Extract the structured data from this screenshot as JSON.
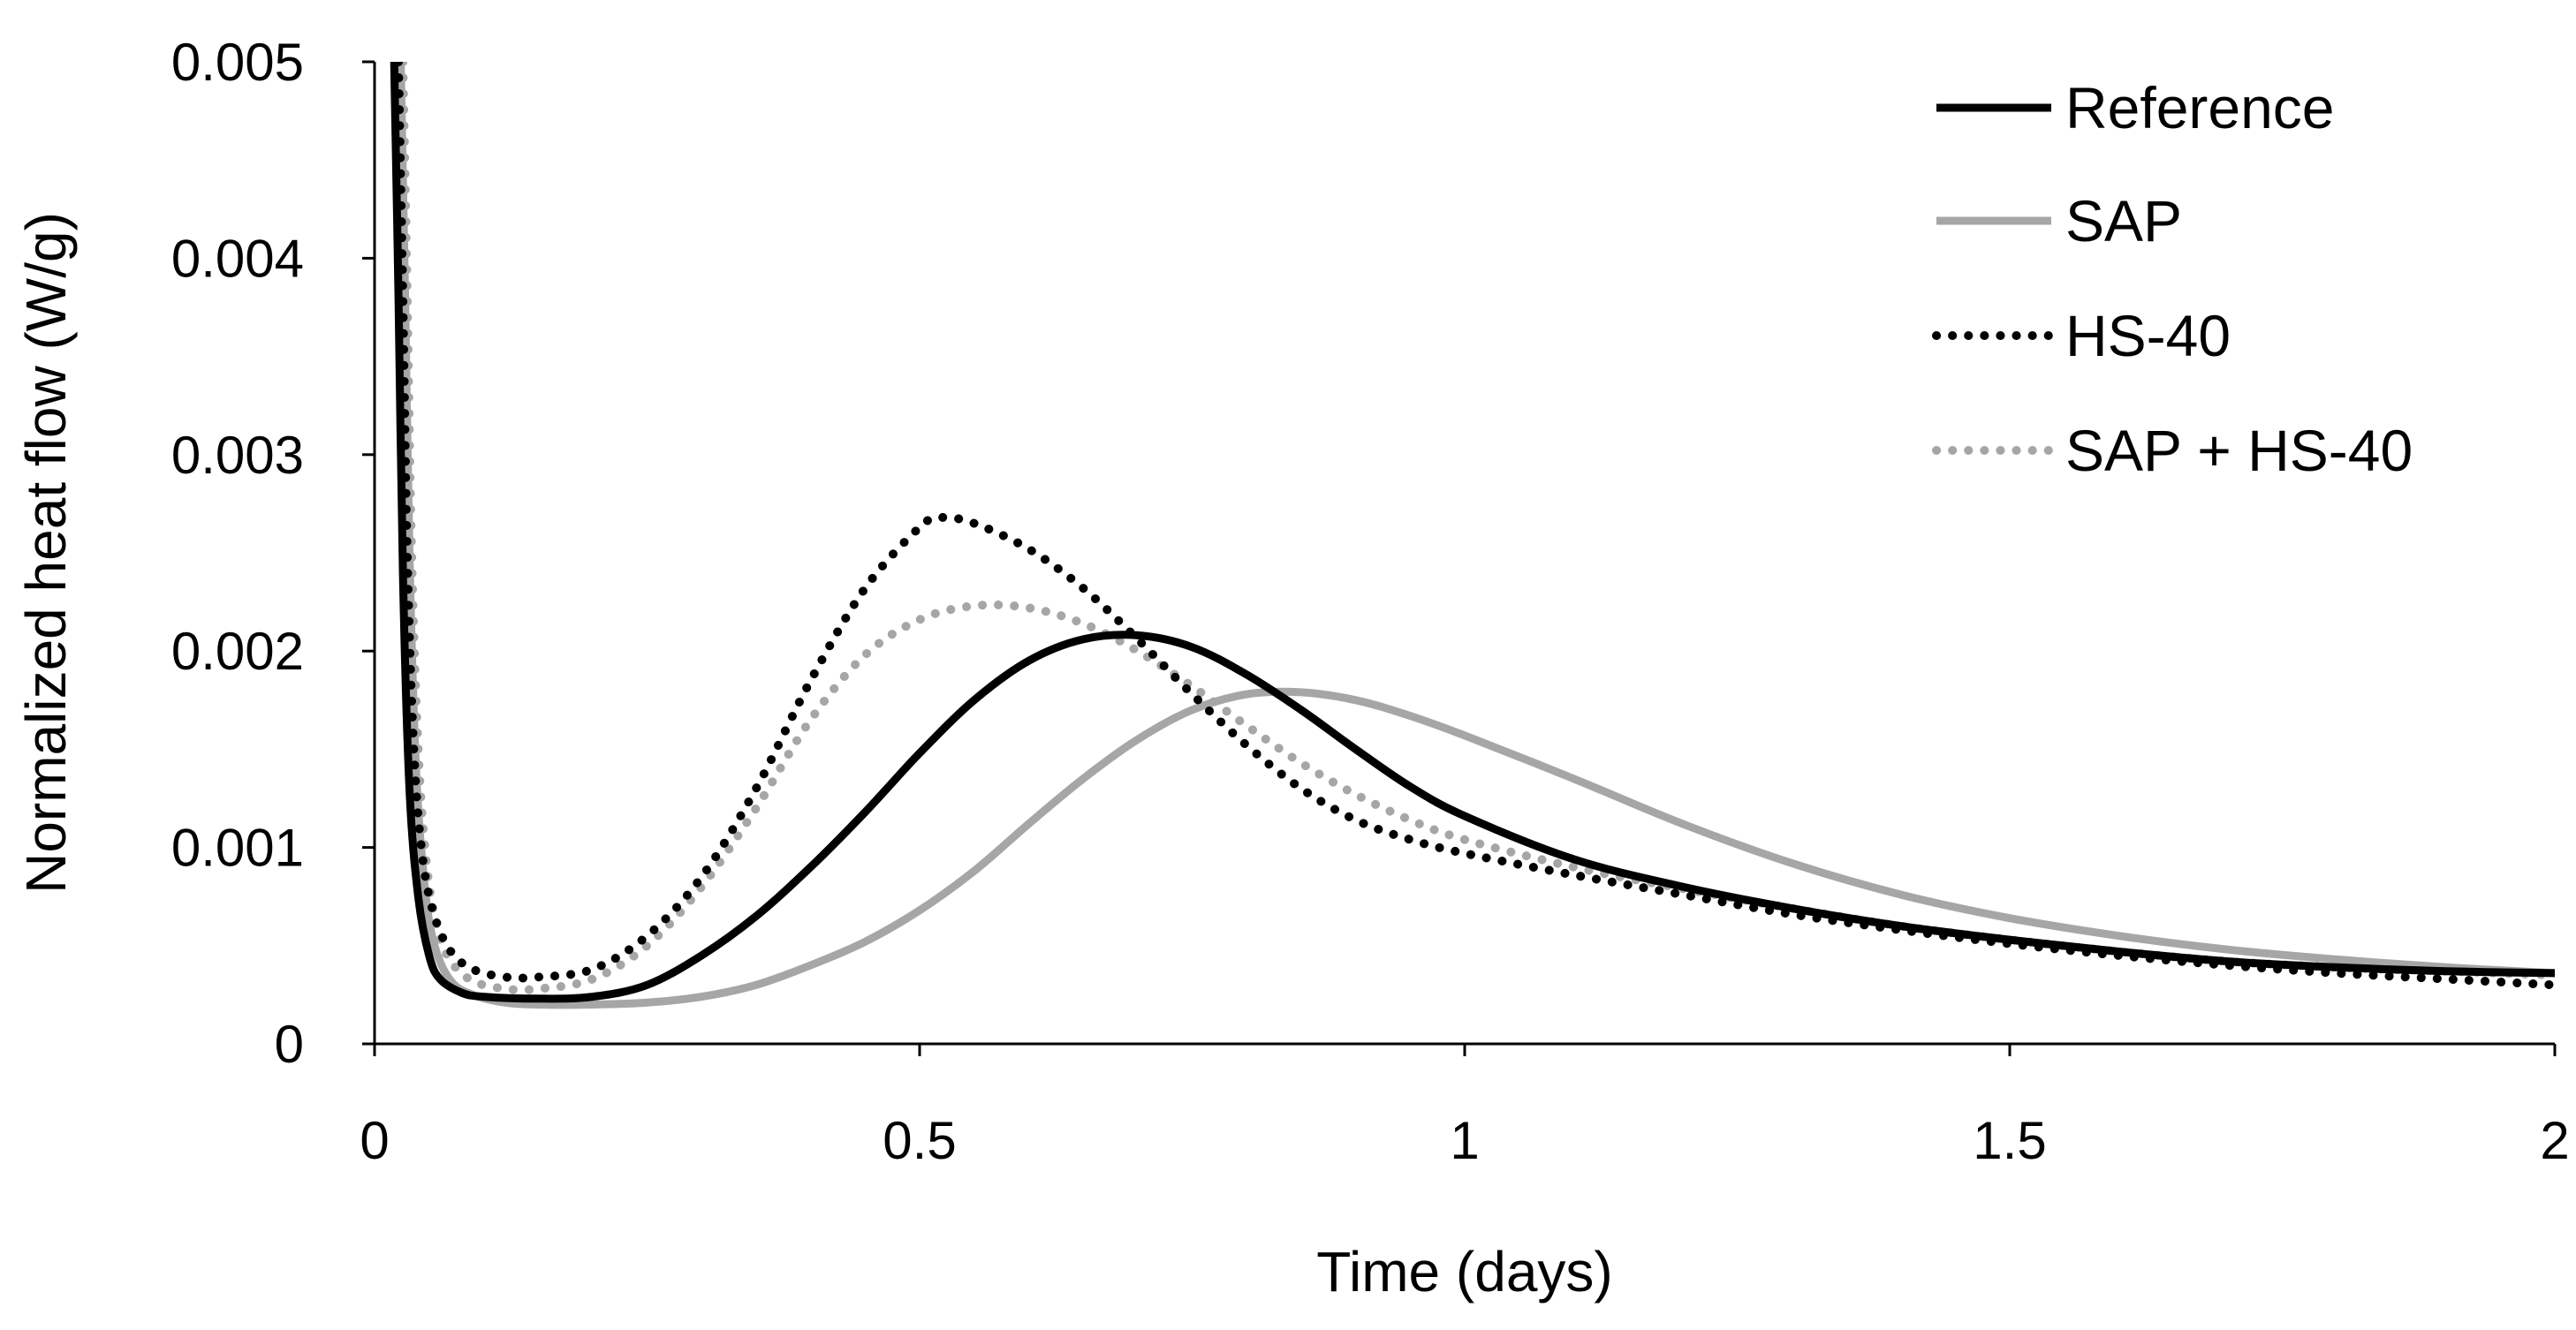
{
  "chart_data": {
    "type": "line",
    "title": "",
    "xlabel": "Time (days)",
    "ylabel": "Normalized heat flow (W/g)",
    "xlim": [
      0,
      2
    ],
    "ylim": [
      0,
      0.005
    ],
    "x_ticks": [
      "0",
      "0.5",
      "1",
      "1.5",
      "2"
    ],
    "y_ticks": [
      "0",
      "0.001",
      "0.002",
      "0.003",
      "0.004",
      "0.005"
    ],
    "grid": false,
    "legend_position": "top-right",
    "series": [
      {
        "name": "Reference",
        "color": "#000000",
        "style": "solid",
        "points": [
          [
            0.018,
            0.005
          ],
          [
            0.022,
            0.0038
          ],
          [
            0.026,
            0.0024
          ],
          [
            0.032,
            0.0013
          ],
          [
            0.04,
            0.00075
          ],
          [
            0.05,
            0.00045
          ],
          [
            0.06,
            0.00033
          ],
          [
            0.08,
            0.00026
          ],
          [
            0.1,
            0.00024
          ],
          [
            0.15,
            0.00023
          ],
          [
            0.2,
            0.00024
          ],
          [
            0.25,
            0.0003
          ],
          [
            0.3,
            0.00045
          ],
          [
            0.35,
            0.00065
          ],
          [
            0.4,
            0.0009
          ],
          [
            0.45,
            0.00118
          ],
          [
            0.5,
            0.00148
          ],
          [
            0.55,
            0.00175
          ],
          [
            0.6,
            0.00195
          ],
          [
            0.65,
            0.00206
          ],
          [
            0.7,
            0.00208
          ],
          [
            0.75,
            0.00202
          ],
          [
            0.8,
            0.00188
          ],
          [
            0.85,
            0.0017
          ],
          [
            0.9,
            0.0015
          ],
          [
            0.95,
            0.00131
          ],
          [
            1.0,
            0.00116
          ],
          [
            1.1,
            0.00094
          ],
          [
            1.2,
            0.0008
          ],
          [
            1.3,
            0.00069
          ],
          [
            1.4,
            0.0006
          ],
          [
            1.5,
            0.00053
          ],
          [
            1.6,
            0.00047
          ],
          [
            1.7,
            0.00042
          ],
          [
            1.8,
            0.00039
          ],
          [
            1.9,
            0.00037
          ],
          [
            2.0,
            0.00036
          ]
        ]
      },
      {
        "name": "SAP",
        "color": "#a6a6a6",
        "style": "solid",
        "points": [
          [
            0.024,
            0.005
          ],
          [
            0.028,
            0.0038
          ],
          [
            0.032,
            0.0025
          ],
          [
            0.038,
            0.0014
          ],
          [
            0.046,
            0.0008
          ],
          [
            0.055,
            0.0005
          ],
          [
            0.07,
            0.00032
          ],
          [
            0.09,
            0.00025
          ],
          [
            0.12,
            0.00021
          ],
          [
            0.15,
            0.0002
          ],
          [
            0.2,
            0.0002
          ],
          [
            0.25,
            0.00021
          ],
          [
            0.3,
            0.00024
          ],
          [
            0.35,
            0.0003
          ],
          [
            0.4,
            0.0004
          ],
          [
            0.45,
            0.00052
          ],
          [
            0.5,
            0.00068
          ],
          [
            0.55,
            0.00088
          ],
          [
            0.6,
            0.00112
          ],
          [
            0.65,
            0.00135
          ],
          [
            0.7,
            0.00155
          ],
          [
            0.75,
            0.0017
          ],
          [
            0.8,
            0.00178
          ],
          [
            0.85,
            0.00179
          ],
          [
            0.9,
            0.00175
          ],
          [
            0.95,
            0.00167
          ],
          [
            1.0,
            0.00157
          ],
          [
            1.1,
            0.00135
          ],
          [
            1.2,
            0.00112
          ],
          [
            1.3,
            0.00092
          ],
          [
            1.4,
            0.00076
          ],
          [
            1.5,
            0.00064
          ],
          [
            1.6,
            0.00055
          ],
          [
            1.7,
            0.00048
          ],
          [
            1.8,
            0.00043
          ],
          [
            1.9,
            0.00039
          ],
          [
            2.0,
            0.00036
          ]
        ]
      },
      {
        "name": "HS-40",
        "color": "#000000",
        "style": "dotted",
        "points": [
          [
            0.022,
            0.005
          ],
          [
            0.026,
            0.0038
          ],
          [
            0.03,
            0.0025
          ],
          [
            0.036,
            0.0015
          ],
          [
            0.044,
            0.00095
          ],
          [
            0.055,
            0.00065
          ],
          [
            0.07,
            0.00047
          ],
          [
            0.09,
            0.00038
          ],
          [
            0.12,
            0.00034
          ],
          [
            0.15,
            0.00034
          ],
          [
            0.2,
            0.00038
          ],
          [
            0.25,
            0.00055
          ],
          [
            0.3,
            0.00085
          ],
          [
            0.35,
            0.0013
          ],
          [
            0.4,
            0.00185
          ],
          [
            0.45,
            0.00232
          ],
          [
            0.5,
            0.00263
          ],
          [
            0.52,
            0.00268
          ],
          [
            0.55,
            0.00265
          ],
          [
            0.6,
            0.00252
          ],
          [
            0.65,
            0.00232
          ],
          [
            0.7,
            0.00206
          ],
          [
            0.75,
            0.00178
          ],
          [
            0.8,
            0.00152
          ],
          [
            0.85,
            0.0013
          ],
          [
            0.9,
            0.00114
          ],
          [
            0.95,
            0.00104
          ],
          [
            1.0,
            0.00097
          ],
          [
            1.1,
            0.00086
          ],
          [
            1.2,
            0.00076
          ],
          [
            1.3,
            0.00066
          ],
          [
            1.4,
            0.00058
          ],
          [
            1.5,
            0.00051
          ],
          [
            1.6,
            0.00045
          ],
          [
            1.7,
            0.0004
          ],
          [
            1.8,
            0.00036
          ],
          [
            1.9,
            0.00033
          ],
          [
            2.0,
            0.0003
          ]
        ]
      },
      {
        "name": "SAP + HS-40",
        "color": "#a6a6a6",
        "style": "dotted",
        "points": [
          [
            0.026,
            0.005
          ],
          [
            0.03,
            0.0038
          ],
          [
            0.034,
            0.0025
          ],
          [
            0.04,
            0.0015
          ],
          [
            0.048,
            0.0009
          ],
          [
            0.058,
            0.00058
          ],
          [
            0.07,
            0.00042
          ],
          [
            0.09,
            0.00032
          ],
          [
            0.12,
            0.00028
          ],
          [
            0.15,
            0.00028
          ],
          [
            0.2,
            0.00033
          ],
          [
            0.25,
            0.0005
          ],
          [
            0.3,
            0.0008
          ],
          [
            0.35,
            0.0012
          ],
          [
            0.4,
            0.00165
          ],
          [
            0.45,
            0.00198
          ],
          [
            0.5,
            0.00216
          ],
          [
            0.55,
            0.00223
          ],
          [
            0.6,
            0.00222
          ],
          [
            0.65,
            0.00214
          ],
          [
            0.7,
            0.002
          ],
          [
            0.75,
            0.00182
          ],
          [
            0.8,
            0.00162
          ],
          [
            0.85,
            0.00143
          ],
          [
            0.9,
            0.00127
          ],
          [
            0.95,
            0.00114
          ],
          [
            1.0,
            0.00104
          ],
          [
            1.1,
            0.0009
          ],
          [
            1.2,
            0.00079
          ],
          [
            1.3,
            0.00069
          ],
          [
            1.4,
            0.0006
          ],
          [
            1.5,
            0.00053
          ],
          [
            1.6,
            0.00047
          ],
          [
            1.7,
            0.00042
          ],
          [
            1.8,
            0.00039
          ],
          [
            1.9,
            0.00037
          ],
          [
            2.0,
            0.00035
          ]
        ]
      }
    ]
  }
}
